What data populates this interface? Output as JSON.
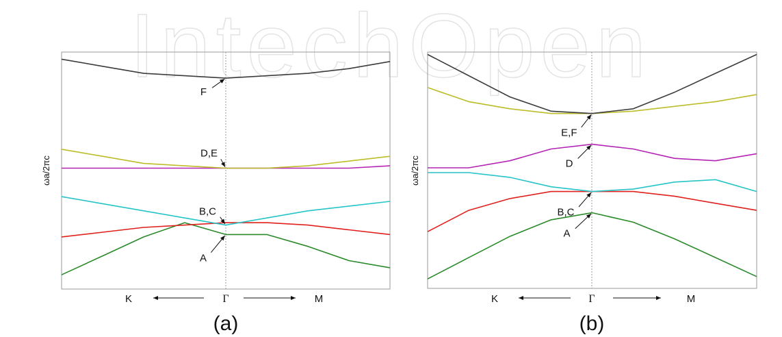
{
  "figure": {
    "watermark_text": "IntechOpen"
  },
  "chart_data": [
    {
      "type": "line",
      "caption": "(a)",
      "ylabel": "ωa/2πc",
      "x_ticks": [
        "K",
        "Γ",
        "M"
      ],
      "x_direction_arrows": true,
      "x": [
        -1,
        -0.75,
        -0.5,
        -0.25,
        0,
        0.25,
        0.5,
        0.75,
        1
      ],
      "ylim": [
        0,
        1
      ],
      "grid": false,
      "series": [
        {
          "band": 1,
          "color": "#2a8a2a",
          "values": [
            0.06,
            0.14,
            0.22,
            0.28,
            0.23,
            0.23,
            0.18,
            0.12,
            0.09
          ]
        },
        {
          "band": 2,
          "color": "#e0201c",
          "values": [
            0.22,
            0.24,
            0.26,
            0.27,
            0.28,
            0.28,
            0.27,
            0.25,
            0.23
          ]
        },
        {
          "band": 3,
          "color": "#25c4c8",
          "values": [
            0.39,
            0.36,
            0.33,
            0.3,
            0.27,
            0.3,
            0.33,
            0.35,
            0.37
          ]
        },
        {
          "band": 4,
          "color": "#b423b4",
          "values": [
            0.51,
            0.51,
            0.51,
            0.51,
            0.51,
            0.51,
            0.51,
            0.51,
            0.52
          ]
        },
        {
          "band": 5,
          "color": "#bcbc28",
          "values": [
            0.59,
            0.56,
            0.53,
            0.52,
            0.51,
            0.51,
            0.52,
            0.54,
            0.56
          ]
        },
        {
          "band": 6,
          "color": "#3c3c3c",
          "values": [
            0.97,
            0.94,
            0.91,
            0.9,
            0.89,
            0.9,
            0.91,
            0.93,
            0.96
          ]
        }
      ],
      "annotations": [
        {
          "text": "F",
          "x": 0,
          "y": 0.89
        },
        {
          "text": "D,E",
          "x": 0,
          "y": 0.51
        },
        {
          "text": "B,C",
          "x": 0,
          "y": 0.27
        },
        {
          "text": "A",
          "x": 0,
          "y": 0.23
        }
      ]
    },
    {
      "type": "line",
      "caption": "(b)",
      "ylabel": "ωa/2πc",
      "x_ticks": [
        "K",
        "Γ",
        "M"
      ],
      "x_direction_arrows": true,
      "x": [
        -1,
        -0.75,
        -0.5,
        -0.25,
        0,
        0.25,
        0.5,
        0.75,
        1
      ],
      "ylim": [
        0,
        1
      ],
      "grid": false,
      "series": [
        {
          "band": 1,
          "color": "#2a8a2a",
          "values": [
            0.04,
            0.13,
            0.22,
            0.29,
            0.32,
            0.28,
            0.21,
            0.13,
            0.05
          ]
        },
        {
          "band": 2,
          "color": "#e0201c",
          "values": [
            0.24,
            0.33,
            0.38,
            0.41,
            0.41,
            0.41,
            0.39,
            0.36,
            0.33
          ]
        },
        {
          "band": 3,
          "color": "#25c4c8",
          "values": [
            0.49,
            0.49,
            0.47,
            0.43,
            0.41,
            0.42,
            0.45,
            0.46,
            0.41
          ]
        },
        {
          "band": 4,
          "color": "#b423b4",
          "values": [
            0.51,
            0.51,
            0.54,
            0.59,
            0.61,
            0.59,
            0.55,
            0.54,
            0.57
          ]
        },
        {
          "band": 5,
          "color": "#bcbc28",
          "values": [
            0.85,
            0.79,
            0.76,
            0.74,
            0.74,
            0.75,
            0.77,
            0.79,
            0.82
          ]
        },
        {
          "band": 6,
          "color": "#3c3c3c",
          "values": [
            0.99,
            0.9,
            0.81,
            0.75,
            0.74,
            0.76,
            0.83,
            0.91,
            0.99
          ]
        }
      ],
      "annotations": [
        {
          "text": "E,F",
          "x": 0,
          "y": 0.74
        },
        {
          "text": "D",
          "x": 0,
          "y": 0.61
        },
        {
          "text": "B,C",
          "x": 0,
          "y": 0.41
        },
        {
          "text": "A",
          "x": 0,
          "y": 0.32
        }
      ]
    }
  ]
}
